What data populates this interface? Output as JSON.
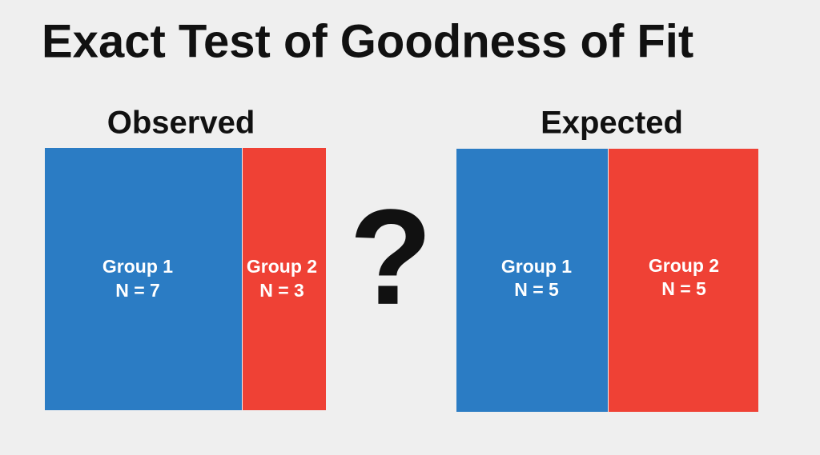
{
  "title": "Exact Test of Goodness of Fit",
  "question": "?",
  "panels": [
    {
      "label": "Observed",
      "groups": [
        {
          "name": "Group 1",
          "count": "N = 7"
        },
        {
          "name": "Group 2",
          "count": "N = 3"
        }
      ]
    },
    {
      "label": "Expected",
      "groups": [
        {
          "name": "Group 1",
          "count": "N = 5"
        },
        {
          "name": "Group 2",
          "count": "N = 5"
        }
      ]
    }
  ]
}
